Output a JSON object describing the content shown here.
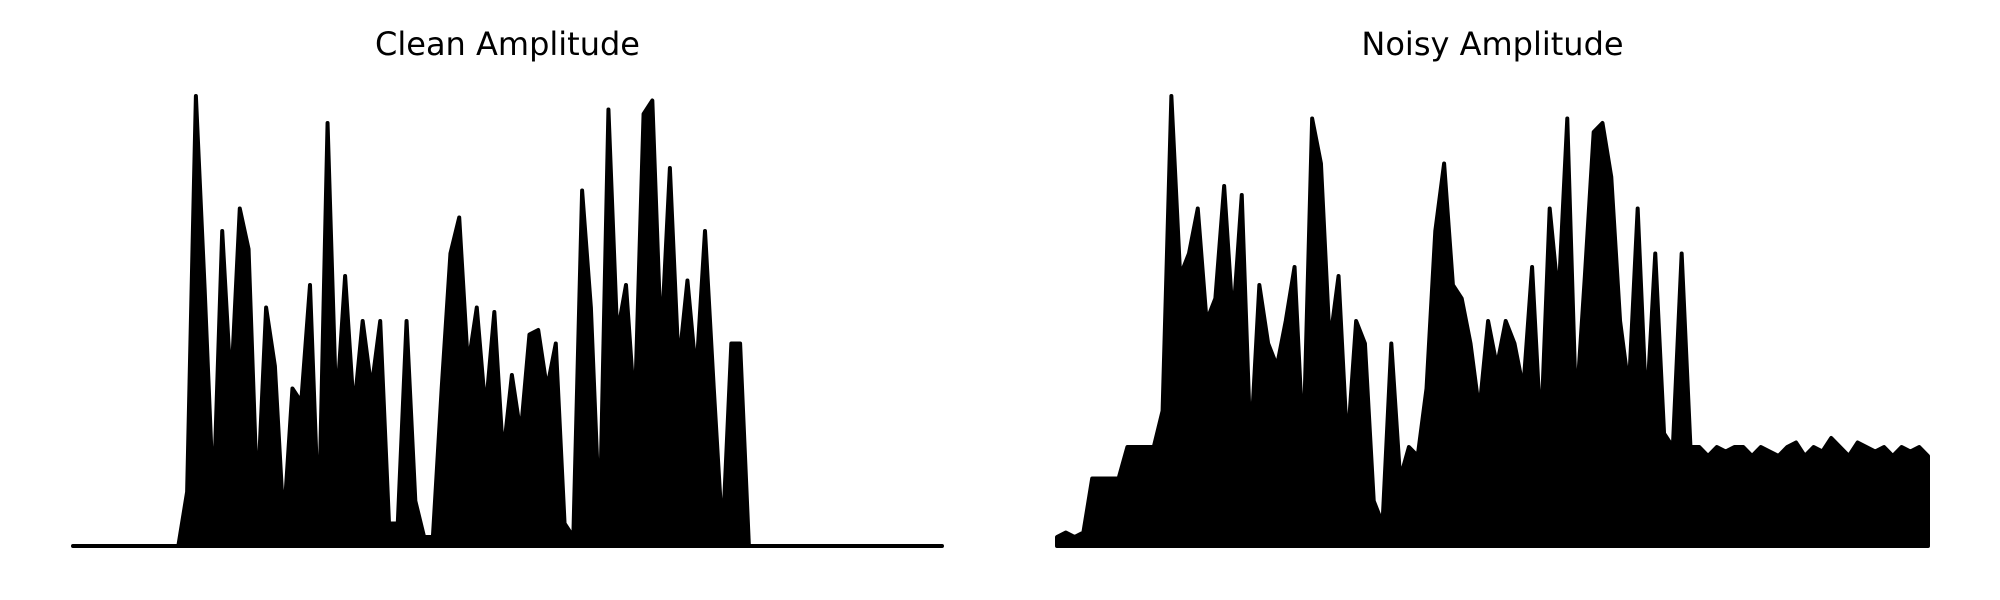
{
  "chart_data": [
    {
      "type": "area",
      "title": "Clean Amplitude",
      "color": "#000000",
      "ylim": [
        0,
        1
      ],
      "values": [
        0,
        0,
        0,
        0,
        0,
        0,
        0,
        0,
        0,
        0,
        0,
        0,
        0,
        0.12,
        1.0,
        0.57,
        0.1,
        0.7,
        0.35,
        0.75,
        0.66,
        0.1,
        0.53,
        0.4,
        0.05,
        0.35,
        0.32,
        0.58,
        0.05,
        0.94,
        0.3,
        0.6,
        0.3,
        0.5,
        0.35,
        0.5,
        0.05,
        0.05,
        0.5,
        0.1,
        0.02,
        0.02,
        0.35,
        0.65,
        0.73,
        0.4,
        0.53,
        0.3,
        0.52,
        0.2,
        0.38,
        0.25,
        0.47,
        0.48,
        0.35,
        0.45,
        0.05,
        0.02,
        0.79,
        0.53,
        0.05,
        0.97,
        0.47,
        0.58,
        0.3,
        0.96,
        0.99,
        0.45,
        0.84,
        0.4,
        0.59,
        0.38,
        0.7,
        0.35,
        0.02,
        0.45,
        0.45,
        0,
        0,
        0,
        0,
        0,
        0,
        0,
        0,
        0,
        0,
        0,
        0,
        0,
        0,
        0,
        0,
        0,
        0,
        0,
        0,
        0,
        0,
        0
      ]
    },
    {
      "type": "area",
      "title": "Noisy Amplitude",
      "color": "#000000",
      "ylim": [
        0,
        1
      ],
      "values": [
        0.02,
        0.03,
        0.02,
        0.03,
        0.15,
        0.15,
        0.15,
        0.15,
        0.22,
        0.22,
        0.22,
        0.22,
        0.3,
        1.0,
        0.6,
        0.65,
        0.75,
        0.5,
        0.55,
        0.8,
        0.5,
        0.78,
        0.22,
        0.58,
        0.45,
        0.4,
        0.5,
        0.62,
        0.22,
        0.95,
        0.85,
        0.45,
        0.6,
        0.22,
        0.5,
        0.45,
        0.1,
        0.05,
        0.45,
        0.15,
        0.22,
        0.2,
        0.35,
        0.7,
        0.85,
        0.58,
        0.55,
        0.45,
        0.3,
        0.5,
        0.4,
        0.5,
        0.45,
        0.35,
        0.62,
        0.25,
        0.75,
        0.55,
        0.95,
        0.3,
        0.6,
        0.92,
        0.94,
        0.82,
        0.5,
        0.35,
        0.75,
        0.3,
        0.65,
        0.25,
        0.22,
        0.65,
        0.22,
        0.22,
        0.2,
        0.22,
        0.21,
        0.22,
        0.22,
        0.2,
        0.22,
        0.21,
        0.2,
        0.22,
        0.23,
        0.2,
        0.22,
        0.21,
        0.24,
        0.22,
        0.2,
        0.23,
        0.22,
        0.21,
        0.22,
        0.2,
        0.22,
        0.21,
        0.22,
        0.2
      ]
    }
  ]
}
